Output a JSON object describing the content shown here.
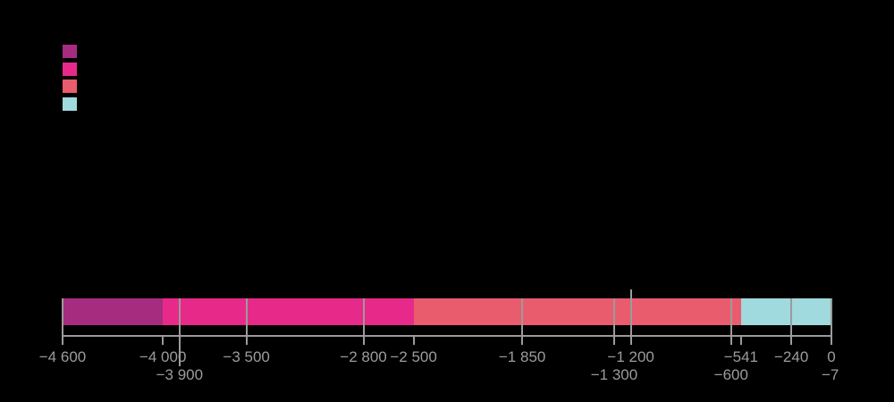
{
  "background_color": "#000000",
  "legend": {
    "position": "top-left",
    "swatches": [
      {
        "name": "legend-swatch-1",
        "color": "#a62c80"
      },
      {
        "name": "legend-swatch-2",
        "color": "#e72a89"
      },
      {
        "name": "legend-swatch-3",
        "color": "#e85c6e"
      },
      {
        "name": "legend-swatch-4",
        "color": "#a0d9de"
      }
    ]
  },
  "chart_data": {
    "type": "bar",
    "subtype": "horizontal-stacked-timeline",
    "title": "",
    "xlabel": "",
    "ylabel": "",
    "axis_range": [
      -4600,
      0
    ],
    "grid": false,
    "legend_position": "top-left",
    "legend_swatch_colors": [
      "#a62c80",
      "#e72a89",
      "#e85c6e",
      "#a0d9de"
    ],
    "segments": [
      {
        "start": -4600,
        "end": -4000,
        "color": "#a62c80"
      },
      {
        "start": -4000,
        "end": -2500,
        "color": "#e72a89"
      },
      {
        "start": -2500,
        "end": -541,
        "color": "#e85c6e"
      },
      {
        "start": -541,
        "end": 0,
        "color": "#a0d9de"
      }
    ],
    "boundaries": [
      {
        "value": -4600,
        "label": "−4 600",
        "label_row": 1,
        "line_through_bar": true
      },
      {
        "value": -4000,
        "label": "−4 000",
        "label_row": 1,
        "line_through_bar": false
      },
      {
        "value": -3900,
        "label": "−3 900",
        "label_row": 2,
        "line_through_bar": true,
        "long_tick": true
      },
      {
        "value": -3500,
        "label": "−3 500",
        "label_row": 1,
        "line_through_bar": true
      },
      {
        "value": -2800,
        "label": "−2 800",
        "label_row": 1,
        "line_through_bar": true
      },
      {
        "value": -2500,
        "label": "−2 500",
        "label_row": 1,
        "line_through_bar": false
      },
      {
        "value": -1850,
        "label": "−1 850",
        "label_row": 1,
        "line_through_bar": true
      },
      {
        "value": -1300,
        "label": "−1 300",
        "label_row": 2,
        "line_through_bar": true
      },
      {
        "value": -1200,
        "label": "−1 200",
        "label_row": 1,
        "line_through_bar": true,
        "extends_above_bar": true
      },
      {
        "value": -600,
        "label": "−600",
        "label_row": 2,
        "line_through_bar": true
      },
      {
        "value": -541,
        "label": "−541",
        "label_row": 1,
        "line_through_bar": false
      },
      {
        "value": -240,
        "label": "−240",
        "label_row": 1,
        "line_through_bar": true
      },
      {
        "value": -7,
        "label": "−7",
        "label_row": 2,
        "line_through_bar": false,
        "no_tick": true
      },
      {
        "value": 0,
        "label": "0",
        "label_row": 1,
        "line_through_bar": true
      }
    ],
    "colors": {
      "axis": "#999999",
      "tick": "#999999",
      "divider": "#9b9b9b",
      "label": "#9c9c9c",
      "background": "#000000"
    }
  }
}
